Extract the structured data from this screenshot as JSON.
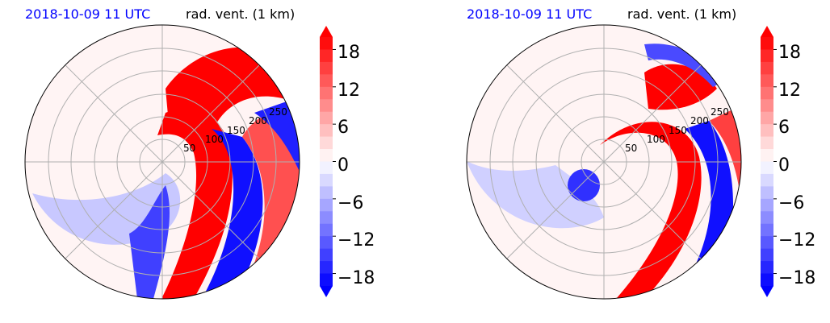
{
  "colors": {
    "red_max": "#ff0000",
    "blue_max": "#0000ff",
    "neutral": "#ffffff",
    "title_left": "#0000ff",
    "grid": "#b0b0b0"
  },
  "chart_data": [
    {
      "type": "polar-contourf",
      "title_left": "2018-10-09 11 UTC",
      "title_right": "rad. vent. (1 km)",
      "radial_ticks": [
        "50",
        "100",
        "150",
        "200",
        "250"
      ],
      "colorbar": {
        "ticks": [
          "18",
          "12",
          "6",
          "0",
          "−6",
          "−12",
          "−18"
        ],
        "tick_values": [
          18,
          12,
          6,
          0,
          -6,
          -12,
          -18
        ],
        "range": [
          -20,
          20
        ],
        "extend": "both",
        "cmap": "bwr"
      }
    },
    {
      "type": "polar-contourf",
      "title_left": "2018-10-09 11 UTC",
      "title_right": "rad. vent. (1 km)",
      "radial_ticks": [
        "50",
        "100",
        "150",
        "200",
        "250"
      ],
      "colorbar": {
        "ticks": [
          "18",
          "12",
          "6",
          "0",
          "−6",
          "−12",
          "−18"
        ],
        "tick_values": [
          18,
          12,
          6,
          0,
          -6,
          -12,
          -18
        ],
        "range": [
          -20,
          20
        ],
        "extend": "both",
        "cmap": "bwr"
      }
    }
  ]
}
